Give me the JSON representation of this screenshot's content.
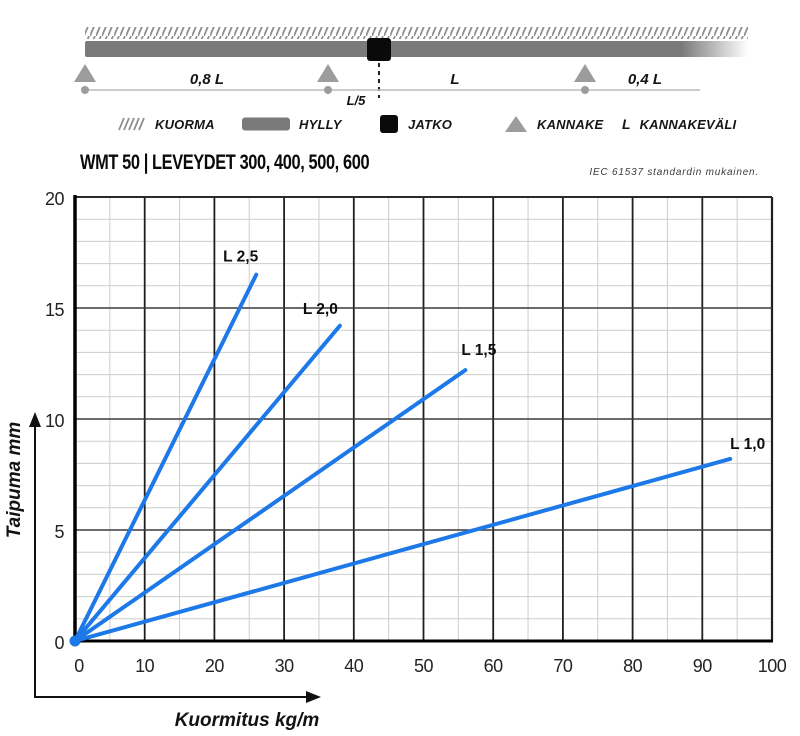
{
  "diagram": {
    "labels": {
      "span1": "0,8 L",
      "span2": "L",
      "span3": "0,4 L",
      "joint_offset": "L/5"
    }
  },
  "legend": {
    "items": [
      {
        "icon": "load-hatch-icon",
        "label": "KUORMA"
      },
      {
        "icon": "shelf-bar-icon",
        "label": "HYLLY"
      },
      {
        "icon": "joint-square-icon",
        "label": "JATKO"
      },
      {
        "icon": "support-triangle-icon",
        "label": "KANNAKE"
      },
      {
        "icon": "letter-L-symbol",
        "symbol": "L",
        "label": "KANNAKEVÄLI"
      }
    ]
  },
  "header": {
    "title": "WMT 50 | LEVEYDET 300, 400, 500, 600",
    "standard_note": "IEC 61537 standardin mukainen."
  },
  "chart_data": {
    "type": "line",
    "title": "WMT 50 | LEVEYDET 300, 400, 500, 600",
    "xlabel": "Kuormitus kg/m",
    "ylabel": "Taipuma mm",
    "xlim": [
      0,
      100
    ],
    "ylim": [
      0,
      20
    ],
    "x_ticks": [
      0,
      10,
      20,
      30,
      40,
      50,
      60,
      70,
      80,
      90,
      100
    ],
    "y_ticks": [
      0,
      5,
      10,
      15,
      20
    ],
    "x_minor_step": 5,
    "y_minor_step": 1,
    "grid": true,
    "legend_position": "inline-labels",
    "line_color": "#1d78e8",
    "series": [
      {
        "name": "L 2,5",
        "points": [
          [
            0,
            0
          ],
          [
            26,
            16.5
          ]
        ],
        "label_anchor": "end",
        "label_offset": [
          2,
          -13
        ]
      },
      {
        "name": "L 2,0",
        "points": [
          [
            0,
            0
          ],
          [
            38,
            14.2
          ]
        ],
        "label_anchor": "end",
        "label_offset": [
          -2,
          -12
        ]
      },
      {
        "name": "L 1,5",
        "points": [
          [
            0,
            0
          ],
          [
            56,
            12.2
          ]
        ],
        "label_anchor": "start",
        "label_offset": [
          -4,
          -15
        ]
      },
      {
        "name": "L 1,0",
        "points": [
          [
            0,
            0
          ],
          [
            94,
            8.2
          ]
        ],
        "label_anchor": "start",
        "label_offset": [
          0,
          -10
        ]
      }
    ]
  },
  "colors": {
    "accent-blue": "#1d78e8",
    "beam-gray": "#7a7a7a",
    "support-gray": "#9c9c9c",
    "hatch-gray": "#8f8f8f",
    "grid-minor": "#cdcdcd"
  }
}
